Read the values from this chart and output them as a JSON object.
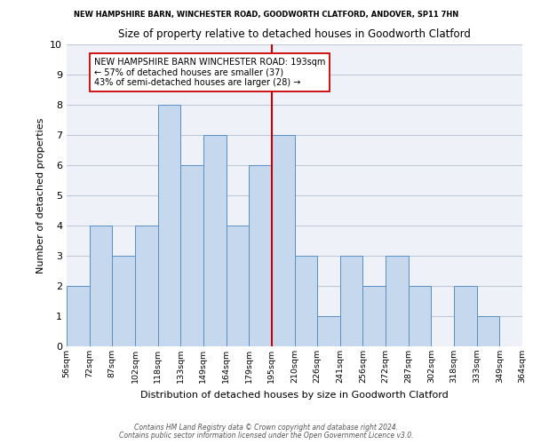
{
  "title_top": "NEW HAMPSHIRE BARN, WINCHESTER ROAD, GOODWORTH CLATFORD, ANDOVER, SP11 7HN",
  "title_main": "Size of property relative to detached houses in Goodworth Clatford",
  "xlabel": "Distribution of detached houses by size in Goodworth Clatford",
  "ylabel": "Number of detached properties",
  "footer1": "Contains HM Land Registry data © Crown copyright and database right 2024.",
  "footer2": "Contains public sector information licensed under the Open Government Licence v3.0.",
  "bar_labels": [
    "56sqm",
    "72sqm",
    "87sqm",
    "102sqm",
    "118sqm",
    "133sqm",
    "149sqm",
    "164sqm",
    "179sqm",
    "195sqm",
    "210sqm",
    "226sqm",
    "241sqm",
    "256sqm",
    "272sqm",
    "287sqm",
    "302sqm",
    "318sqm",
    "333sqm",
    "349sqm",
    "364sqm"
  ],
  "bar_values": [
    2,
    4,
    3,
    4,
    8,
    6,
    7,
    4,
    6,
    7,
    3,
    1,
    3,
    2,
    3,
    2,
    0,
    2,
    1,
    0
  ],
  "bar_color": "#c5d8ed",
  "bar_edge_color": "#5a8fc0",
  "grid_color": "#c0c8d8",
  "background_color": "#eef2f8",
  "vline_label_index": 9,
  "vline_color": "#cc0000",
  "annotation_title": "NEW HAMPSHIRE BARN WINCHESTER ROAD: 193sqm",
  "annotation_line1": "← 57% of detached houses are smaller (37)",
  "annotation_line2": "43% of semi-detached houses are larger (28) →",
  "annotation_box_color": "#ffffff",
  "annotation_box_edge": "#cc0000",
  "ylim": [
    0,
    10
  ],
  "yticks": [
    0,
    1,
    2,
    3,
    4,
    5,
    6,
    7,
    8,
    9,
    10
  ]
}
